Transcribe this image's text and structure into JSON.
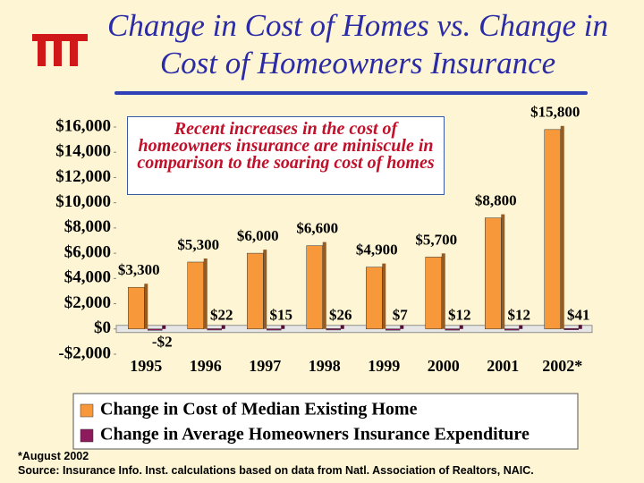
{
  "chart_data": {
    "type": "bar",
    "title": "Change in Cost of Homes vs. Change in Cost of Homeowners Insurance",
    "annotation": "Recent increases in the cost of homeowners insurance are miniscule in comparison to the soaring cost of homes",
    "footnote": "*August 2002",
    "source": "Source: Insurance Info. Inst. calculations based on data from Natl. Association of Realtors, NAIC.",
    "categories": [
      "1995",
      "1996",
      "1997",
      "1998",
      "1999",
      "2000",
      "2001",
      "2002*"
    ],
    "series": [
      {
        "name": "Change in Cost of Median Existing Home",
        "color": "#f7993a",
        "values": [
          3300,
          5300,
          6000,
          6600,
          4900,
          5700,
          8800,
          15800
        ],
        "value_labels": [
          "$3,300",
          "$5,300",
          "$6,000",
          "$6,600",
          "$4,900",
          "$5,700",
          "$8,800",
          "$15,800"
        ]
      },
      {
        "name": "Change in Average Homeowners Insurance Expenditure",
        "color": "#8c1a5c",
        "values": [
          -2,
          22,
          15,
          26,
          7,
          12,
          12,
          41
        ],
        "value_labels": [
          "-$2",
          "$22",
          "$15",
          "$26",
          "$7",
          "$12",
          "$12",
          "$41"
        ]
      }
    ],
    "ylim": [
      -2000,
      16000
    ],
    "yticks": [
      {
        "value": -2000,
        "label": "-$2,000"
      },
      {
        "value": 0,
        "label": "$0"
      },
      {
        "value": 2000,
        "label": "$2,000"
      },
      {
        "value": 4000,
        "label": "$4,000"
      },
      {
        "value": 6000,
        "label": "$6,000"
      },
      {
        "value": 8000,
        "label": "$8,000"
      },
      {
        "value": 10000,
        "label": "$10,000"
      },
      {
        "value": 12000,
        "label": "$12,000"
      },
      {
        "value": 14000,
        "label": "$14,000"
      },
      {
        "value": 16000,
        "label": "$16,000"
      }
    ],
    "legend": "bottom",
    "grid": false
  }
}
